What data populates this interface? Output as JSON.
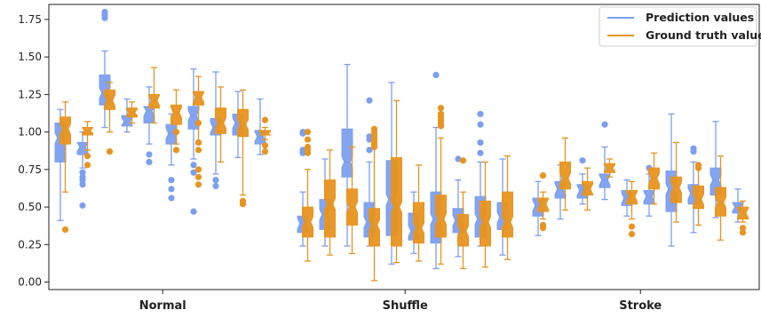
{
  "chart_data": {
    "type": "box",
    "categories": [
      "Normal",
      "Shuffle",
      "Stroke"
    ],
    "ylim": [
      -0.05,
      1.85
    ],
    "yticks": [
      "0.00",
      "0.25",
      "0.50",
      "0.75",
      "1.00",
      "1.25",
      "1.50",
      "1.75"
    ],
    "grid": false,
    "legend_position": "top-right",
    "series": [
      {
        "name": "Prediction values",
        "color": "#7b9ff0",
        "boxes": [
          {
            "group": "Normal",
            "min": 0.41,
            "q1": 0.8,
            "median": 0.96,
            "q3": 1.06,
            "max": 1.15,
            "outliers": []
          },
          {
            "group": "Normal",
            "min": 0.76,
            "q1": 0.85,
            "median": 0.9,
            "q3": 0.93,
            "max": 1.0,
            "outliers": [
              0.73,
              0.7,
              0.68,
              0.65,
              0.51
            ]
          },
          {
            "group": "Normal",
            "min": 1.03,
            "q1": 1.18,
            "median": 1.26,
            "q3": 1.38,
            "max": 1.54,
            "outliers": [
              1.8,
              1.78,
              1.76
            ]
          },
          {
            "group": "Normal",
            "min": 1.0,
            "q1": 1.04,
            "median": 1.07,
            "q3": 1.11,
            "max": 1.22,
            "outliers": []
          },
          {
            "group": "Normal",
            "min": 0.92,
            "q1": 1.06,
            "median": 1.14,
            "q3": 1.17,
            "max": 1.3,
            "outliers": [
              0.85,
              0.8
            ]
          },
          {
            "group": "Normal",
            "min": 0.78,
            "q1": 0.92,
            "median": 0.99,
            "q3": 1.05,
            "max": 1.12,
            "outliers": [
              0.68,
              0.62,
              0.56
            ]
          },
          {
            "group": "Normal",
            "min": 0.82,
            "q1": 1.02,
            "median": 1.11,
            "q3": 1.17,
            "max": 1.42,
            "outliers": [
              0.78,
              0.73,
              0.47
            ]
          },
          {
            "group": "Normal",
            "min": 0.72,
            "q1": 0.98,
            "median": 1.03,
            "q3": 1.09,
            "max": 1.4,
            "outliers": [
              0.68,
              0.64
            ]
          },
          {
            "group": "Normal",
            "min": 0.83,
            "q1": 0.98,
            "median": 1.06,
            "q3": 1.12,
            "max": 1.27,
            "outliers": []
          },
          {
            "group": "Normal",
            "min": 0.85,
            "q1": 0.92,
            "median": 0.97,
            "q3": 1.01,
            "max": 1.22,
            "outliers": []
          },
          {
            "group": "Shuffle",
            "min": 0.24,
            "q1": 0.33,
            "median": 0.39,
            "q3": 0.44,
            "max": 0.6,
            "outliers": [
              1.0,
              0.99,
              0.88,
              0.86
            ]
          },
          {
            "group": "Shuffle",
            "min": 0.24,
            "q1": 0.35,
            "median": 0.45,
            "q3": 0.55,
            "max": 0.82,
            "outliers": []
          },
          {
            "group": "Shuffle",
            "min": 0.24,
            "q1": 0.7,
            "median": 0.8,
            "q3": 1.02,
            "max": 1.45,
            "outliers": []
          },
          {
            "group": "Shuffle",
            "min": 0.24,
            "q1": 0.3,
            "median": 0.4,
            "q3": 0.53,
            "max": 0.8,
            "outliers": [
              1.21,
              0.97,
              0.95,
              0.88
            ]
          },
          {
            "group": "Shuffle",
            "min": 0.12,
            "q1": 0.31,
            "median": 0.55,
            "q3": 0.81,
            "max": 1.33,
            "outliers": []
          },
          {
            "group": "Shuffle",
            "min": 0.19,
            "q1": 0.28,
            "median": 0.34,
            "q3": 0.46,
            "max": 0.6,
            "outliers": []
          },
          {
            "group": "Shuffle",
            "min": 0.09,
            "q1": 0.26,
            "median": 0.42,
            "q3": 0.6,
            "max": 1.03,
            "outliers": [
              1.38
            ]
          },
          {
            "group": "Shuffle",
            "min": 0.17,
            "q1": 0.33,
            "median": 0.41,
            "q3": 0.49,
            "max": 0.68,
            "outliers": [
              0.82
            ]
          },
          {
            "group": "Shuffle",
            "min": 0.24,
            "q1": 0.3,
            "median": 0.42,
            "q3": 0.57,
            "max": 0.8,
            "outliers": [
              1.12,
              1.05,
              0.93,
              0.86
            ]
          },
          {
            "group": "Shuffle",
            "min": 0.18,
            "q1": 0.35,
            "median": 0.43,
            "q3": 0.53,
            "max": 0.82,
            "outliers": []
          },
          {
            "group": "Stroke",
            "min": 0.31,
            "q1": 0.44,
            "median": 0.51,
            "q3": 0.56,
            "max": 0.67,
            "outliers": []
          },
          {
            "group": "Stroke",
            "min": 0.42,
            "q1": 0.56,
            "median": 0.62,
            "q3": 0.67,
            "max": 0.78,
            "outliers": []
          },
          {
            "group": "Stroke",
            "min": 0.52,
            "q1": 0.56,
            "median": 0.61,
            "q3": 0.65,
            "max": 0.72,
            "outliers": [
              0.81
            ]
          },
          {
            "group": "Stroke",
            "min": 0.55,
            "q1": 0.63,
            "median": 0.68,
            "q3": 0.72,
            "max": 0.9,
            "outliers": [
              1.05
            ]
          },
          {
            "group": "Stroke",
            "min": 0.44,
            "q1": 0.51,
            "median": 0.56,
            "q3": 0.61,
            "max": 0.68,
            "outliers": []
          },
          {
            "group": "Stroke",
            "min": 0.44,
            "q1": 0.52,
            "median": 0.57,
            "q3": 0.61,
            "max": 0.72,
            "outliers": [
              0.76
            ]
          },
          {
            "group": "Stroke",
            "min": 0.24,
            "q1": 0.47,
            "median": 0.62,
            "q3": 0.74,
            "max": 1.12,
            "outliers": []
          },
          {
            "group": "Stroke",
            "min": 0.33,
            "q1": 0.52,
            "median": 0.59,
            "q3": 0.65,
            "max": 0.8,
            "outliers": [
              0.89,
              0.87
            ]
          },
          {
            "group": "Stroke",
            "min": 0.43,
            "q1": 0.58,
            "median": 0.68,
            "q3": 0.76,
            "max": 1.07,
            "outliers": []
          },
          {
            "group": "Stroke",
            "min": 0.4,
            "q1": 0.46,
            "median": 0.5,
            "q3": 0.53,
            "max": 0.62,
            "outliers": []
          }
        ]
      },
      {
        "name": "Ground truth values",
        "color": "#e8941e",
        "boxes": [
          {
            "group": "Normal",
            "min": 0.6,
            "q1": 0.92,
            "median": 1.02,
            "q3": 1.1,
            "max": 1.2,
            "outliers": [
              0.35
            ]
          },
          {
            "group": "Normal",
            "min": 0.88,
            "q1": 0.98,
            "median": 1.01,
            "q3": 1.03,
            "max": 1.07,
            "outliers": [
              0.84,
              0.78
            ]
          },
          {
            "group": "Normal",
            "min": 1.0,
            "q1": 1.15,
            "median": 1.21,
            "q3": 1.28,
            "max": 1.33,
            "outliers": [
              0.87
            ]
          },
          {
            "group": "Normal",
            "min": 1.06,
            "q1": 1.1,
            "median": 1.13,
            "q3": 1.16,
            "max": 1.2,
            "outliers": []
          },
          {
            "group": "Normal",
            "min": 1.06,
            "q1": 1.16,
            "median": 1.21,
            "q3": 1.25,
            "max": 1.43,
            "outliers": []
          },
          {
            "group": "Normal",
            "min": 0.92,
            "q1": 1.05,
            "median": 1.13,
            "q3": 1.18,
            "max": 1.28,
            "outliers": [
              1.0,
              0.88
            ]
          },
          {
            "group": "Normal",
            "min": 0.92,
            "q1": 1.18,
            "median": 1.23,
            "q3": 1.27,
            "max": 1.37,
            "outliers": [
              1.06,
              0.93,
              0.88,
              0.75,
              0.7,
              0.65
            ]
          },
          {
            "group": "Normal",
            "min": 0.8,
            "q1": 0.99,
            "median": 1.06,
            "q3": 1.16,
            "max": 1.3,
            "outliers": []
          },
          {
            "group": "Normal",
            "min": 0.58,
            "q1": 0.97,
            "median": 1.05,
            "q3": 1.15,
            "max": 1.28,
            "outliers": [
              0.54,
              0.52
            ]
          },
          {
            "group": "Normal",
            "min": 0.95,
            "q1": 0.98,
            "median": 0.99,
            "q3": 1.01,
            "max": 1.03,
            "outliers": [
              1.08,
              0.91,
              0.87
            ]
          },
          {
            "group": "Shuffle",
            "min": 0.14,
            "q1": 0.3,
            "median": 0.4,
            "q3": 0.5,
            "max": 0.75,
            "outliers": [
              1.0,
              0.95,
              0.9,
              0.88,
              0.86
            ]
          },
          {
            "group": "Shuffle",
            "min": 0.18,
            "q1": 0.3,
            "median": 0.52,
            "q3": 0.68,
            "max": 0.88,
            "outliers": []
          },
          {
            "group": "Shuffle",
            "min": 0.19,
            "q1": 0.38,
            "median": 0.5,
            "q3": 0.62,
            "max": 0.9,
            "outliers": []
          },
          {
            "group": "Shuffle",
            "min": 0.01,
            "q1": 0.24,
            "median": 0.38,
            "q3": 0.49,
            "max": 0.98,
            "outliers": [
              1.02,
              1.0,
              0.98,
              0.96,
              0.94,
              0.92,
              0.9
            ]
          },
          {
            "group": "Shuffle",
            "min": 0.13,
            "q1": 0.24,
            "median": 0.5,
            "q3": 0.83,
            "max": 1.21,
            "outliers": []
          },
          {
            "group": "Shuffle",
            "min": 0.14,
            "q1": 0.26,
            "median": 0.36,
            "q3": 0.53,
            "max": 0.78,
            "outliers": []
          },
          {
            "group": "Shuffle",
            "min": 0.12,
            "q1": 0.3,
            "median": 0.42,
            "q3": 0.58,
            "max": 0.96,
            "outliers": [
              1.16,
              1.12,
              1.1,
              1.08,
              1.06,
              1.04
            ]
          },
          {
            "group": "Shuffle",
            "min": 0.09,
            "q1": 0.24,
            "median": 0.34,
            "q3": 0.45,
            "max": 0.6,
            "outliers": [
              0.81
            ]
          },
          {
            "group": "Shuffle",
            "min": 0.1,
            "q1": 0.24,
            "median": 0.4,
            "q3": 0.54,
            "max": 0.8,
            "outliers": []
          },
          {
            "group": "Shuffle",
            "min": 0.15,
            "q1": 0.3,
            "median": 0.4,
            "q3": 0.6,
            "max": 0.84,
            "outliers": []
          },
          {
            "group": "Stroke",
            "min": 0.42,
            "q1": 0.47,
            "median": 0.52,
            "q3": 0.56,
            "max": 0.6,
            "outliers": [
              0.71,
              0.38,
              0.36
            ]
          },
          {
            "group": "Stroke",
            "min": 0.48,
            "q1": 0.62,
            "median": 0.69,
            "q3": 0.8,
            "max": 0.96,
            "outliers": []
          },
          {
            "group": "Stroke",
            "min": 0.48,
            "q1": 0.58,
            "median": 0.62,
            "q3": 0.67,
            "max": 0.76,
            "outliers": []
          },
          {
            "group": "Stroke",
            "min": 0.7,
            "q1": 0.73,
            "median": 0.76,
            "q3": 0.79,
            "max": 0.82,
            "outliers": []
          },
          {
            "group": "Stroke",
            "min": 0.42,
            "q1": 0.52,
            "median": 0.57,
            "q3": 0.61,
            "max": 0.67,
            "outliers": [
              0.37,
              0.32
            ]
          },
          {
            "group": "Stroke",
            "min": 0.52,
            "q1": 0.62,
            "median": 0.69,
            "q3": 0.76,
            "max": 0.86,
            "outliers": []
          },
          {
            "group": "Stroke",
            "min": 0.4,
            "q1": 0.53,
            "median": 0.63,
            "q3": 0.7,
            "max": 0.93,
            "outliers": []
          },
          {
            "group": "Stroke",
            "min": 0.38,
            "q1": 0.49,
            "median": 0.55,
            "q3": 0.64,
            "max": 0.78,
            "outliers": [
              0.78,
              0.76
            ]
          },
          {
            "group": "Stroke",
            "min": 0.28,
            "q1": 0.44,
            "median": 0.53,
            "q3": 0.63,
            "max": 0.84,
            "outliers": []
          },
          {
            "group": "Stroke",
            "min": 0.4,
            "q1": 0.42,
            "median": 0.46,
            "q3": 0.5,
            "max": 0.54,
            "outliers": [
              0.36,
              0.33
            ]
          }
        ]
      }
    ]
  }
}
